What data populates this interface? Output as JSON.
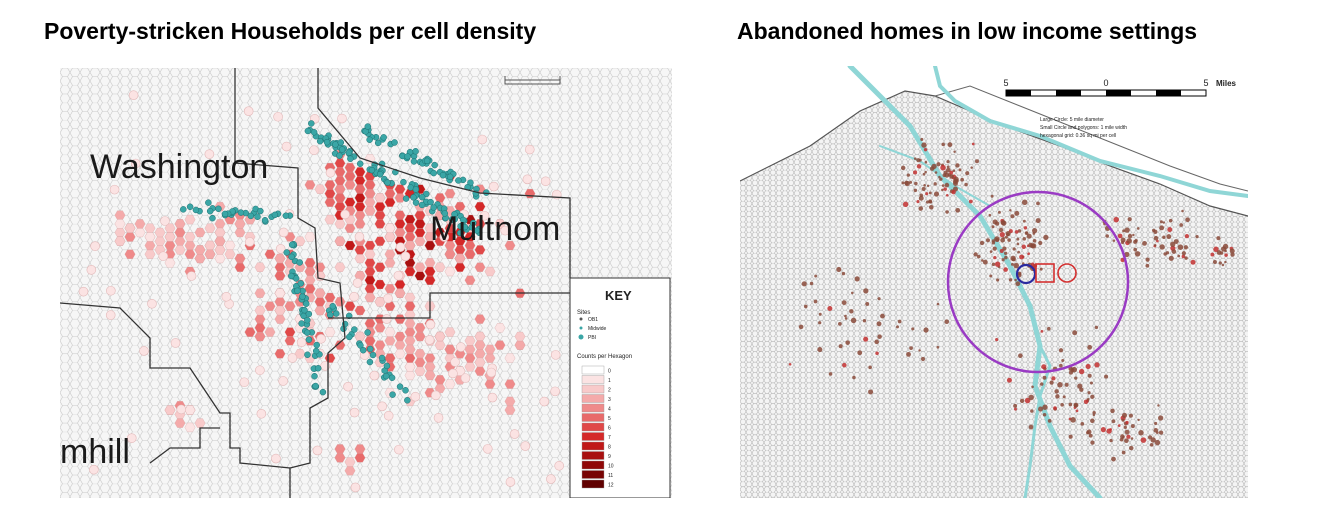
{
  "titles": {
    "left": "Poverty-stricken Households per cell density",
    "right": "Abandoned homes in low income settings"
  },
  "left_map": {
    "counties": {
      "washington": "Washington",
      "multnomah": "Multnom",
      "yamhill": "mhill"
    },
    "key": {
      "heading": "KEY",
      "sites_label": "Sites",
      "site_types": [
        "OB1",
        "Midwide",
        "PBI"
      ],
      "legend_label": "Counts per Hexagon",
      "classes": [
        "0",
        "1",
        "2",
        "3",
        "4",
        "5",
        "6",
        "7",
        "8",
        "9",
        "10",
        "11",
        "12"
      ],
      "ramp_colors": [
        "#ffffff",
        "#fbe3e3",
        "#f8caca",
        "#f4aaaa",
        "#ef8a8a",
        "#e86a6a",
        "#e04848",
        "#d42828",
        "#c01818",
        "#a81010",
        "#900808",
        "#780404",
        "#600000"
      ],
      "site_color": "#3aa6a6"
    }
  },
  "right_map": {
    "scale": {
      "labels": [
        "5",
        "0",
        "5"
      ],
      "unit": "Miles"
    },
    "notes": [
      "Large Circle: 5 mile diameter",
      "Small Circle and polygons: 1 mile width",
      "hexagonal grid: 0.36 sq mi per cell"
    ],
    "colors": {
      "river": "#8fd6d6",
      "large_circle": "#9a3bc4",
      "small_circle_blue": "#2a2aa0",
      "small_circle_red": "#d43030",
      "points": "#8a4a3a"
    }
  }
}
